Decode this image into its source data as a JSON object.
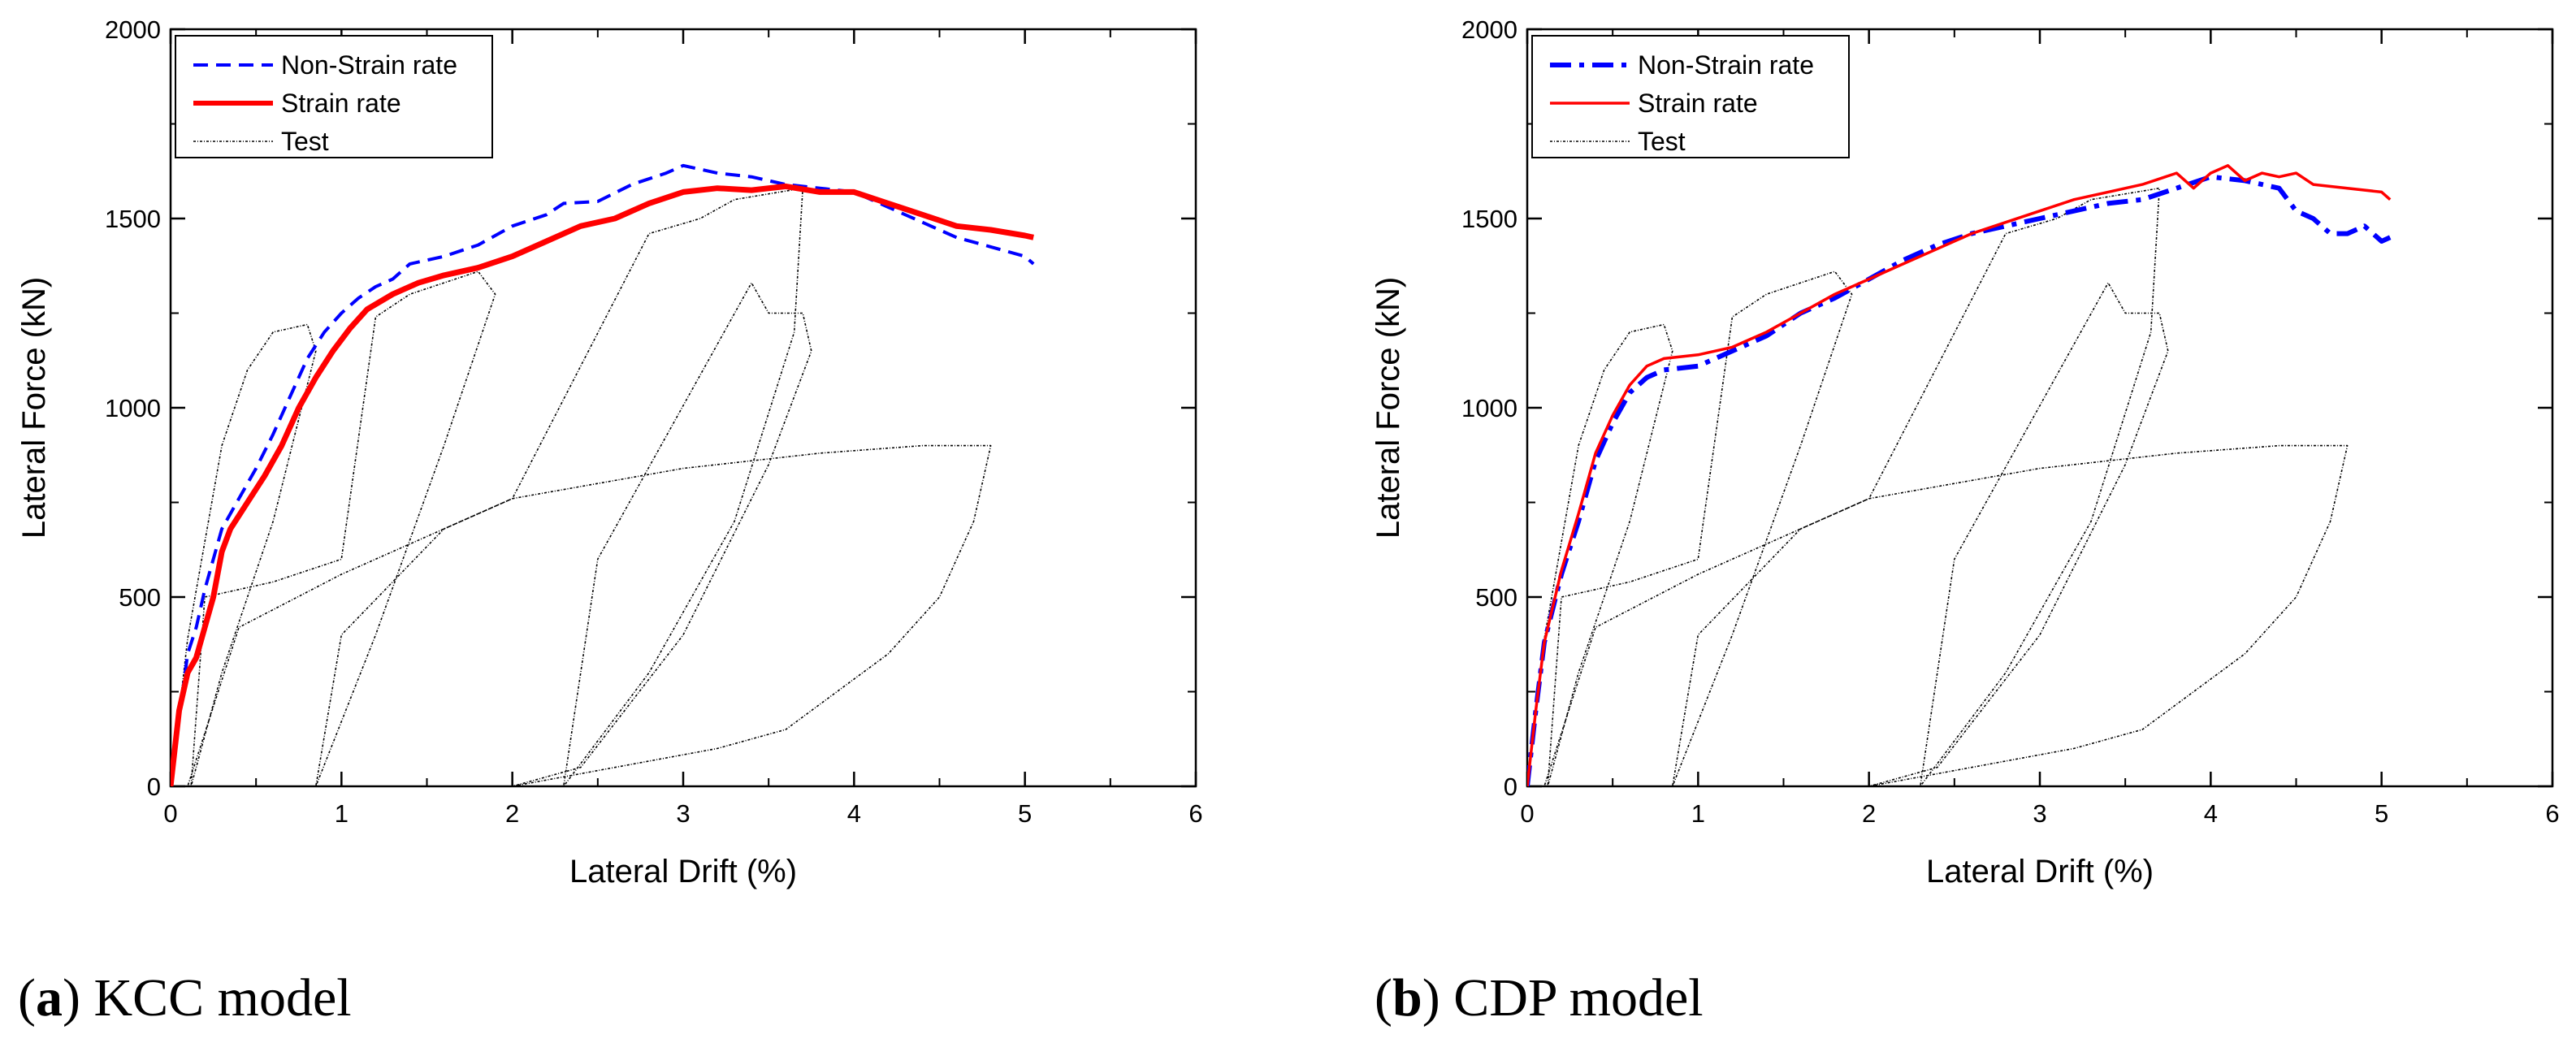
{
  "chart_data": [
    {
      "type": "line",
      "caption_letter": "a",
      "caption_open": "(",
      "caption_close": ")",
      "caption_text": " KCC model",
      "xlabel": "Lateral Drift (%)",
      "ylabel": "Lateral Force (kN)",
      "xlim": [
        0,
        6
      ],
      "ylim": [
        0,
        2000
      ],
      "xticks": [
        0,
        1,
        2,
        3,
        4,
        5,
        6
      ],
      "yticks": [
        0,
        500,
        1000,
        1500,
        2000
      ],
      "legend_position": "top-left",
      "series": [
        {
          "name": "Non-Strain rate",
          "style": "dashed",
          "color": "#0000ff",
          "points": [
            [
              0,
              0
            ],
            [
              0.05,
              180
            ],
            [
              0.1,
              350
            ],
            [
              0.15,
              420
            ],
            [
              0.2,
              520
            ],
            [
              0.25,
              600
            ],
            [
              0.3,
              680
            ],
            [
              0.4,
              760
            ],
            [
              0.5,
              840
            ],
            [
              0.6,
              930
            ],
            [
              0.7,
              1030
            ],
            [
              0.8,
              1130
            ],
            [
              0.9,
              1200
            ],
            [
              1.0,
              1250
            ],
            [
              1.1,
              1290
            ],
            [
              1.2,
              1320
            ],
            [
              1.3,
              1340
            ],
            [
              1.4,
              1380
            ],
            [
              1.5,
              1390
            ],
            [
              1.6,
              1400
            ],
            [
              1.8,
              1430
            ],
            [
              2.0,
              1480
            ],
            [
              2.2,
              1510
            ],
            [
              2.3,
              1540
            ],
            [
              2.5,
              1545
            ],
            [
              2.7,
              1590
            ],
            [
              2.9,
              1620
            ],
            [
              3.0,
              1640
            ],
            [
              3.2,
              1620
            ],
            [
              3.4,
              1610
            ],
            [
              3.6,
              1590
            ],
            [
              3.8,
              1580
            ],
            [
              4.0,
              1570
            ],
            [
              4.2,
              1530
            ],
            [
              4.4,
              1490
            ],
            [
              4.6,
              1450
            ],
            [
              4.8,
              1425
            ],
            [
              5.0,
              1400
            ],
            [
              5.05,
              1380
            ]
          ]
        },
        {
          "name": "Strain rate",
          "style": "solid-thick",
          "color": "#ff0000",
          "points": [
            [
              0,
              0
            ],
            [
              0.05,
              200
            ],
            [
              0.1,
              300
            ],
            [
              0.15,
              340
            ],
            [
              0.2,
              420
            ],
            [
              0.25,
              500
            ],
            [
              0.3,
              620
            ],
            [
              0.35,
              680
            ],
            [
              0.45,
              750
            ],
            [
              0.55,
              820
            ],
            [
              0.65,
              900
            ],
            [
              0.75,
              1000
            ],
            [
              0.85,
              1080
            ],
            [
              0.95,
              1150
            ],
            [
              1.05,
              1210
            ],
            [
              1.15,
              1260
            ],
            [
              1.3,
              1300
            ],
            [
              1.45,
              1330
            ],
            [
              1.6,
              1350
            ],
            [
              1.8,
              1370
            ],
            [
              2.0,
              1400
            ],
            [
              2.2,
              1440
            ],
            [
              2.4,
              1480
            ],
            [
              2.6,
              1500
            ],
            [
              2.8,
              1540
            ],
            [
              3.0,
              1570
            ],
            [
              3.2,
              1580
            ],
            [
              3.4,
              1575
            ],
            [
              3.6,
              1585
            ],
            [
              3.8,
              1570
            ],
            [
              4.0,
              1570
            ],
            [
              4.2,
              1540
            ],
            [
              4.4,
              1510
            ],
            [
              4.6,
              1480
            ],
            [
              4.8,
              1470
            ],
            [
              5.0,
              1455
            ],
            [
              5.05,
              1450
            ]
          ]
        },
        {
          "name": "Test",
          "style": "dotted-thin",
          "color": "#000000",
          "points": [
            [
              0,
              0
            ],
            [
              0.1,
              390
            ],
            [
              0.3,
              900
            ],
            [
              0.45,
              1100
            ],
            [
              0.6,
              1200
            ],
            [
              0.8,
              1220
            ],
            [
              0.85,
              1150
            ],
            [
              0.6,
              700
            ],
            [
              0.3,
              300
            ],
            [
              0.12,
              0
            ],
            [
              0.2,
              500
            ],
            [
              0.6,
              540
            ],
            [
              1.0,
              600
            ],
            [
              1.2,
              1240
            ],
            [
              1.4,
              1300
            ],
            [
              1.8,
              1360
            ],
            [
              1.9,
              1300
            ],
            [
              1.6,
              900
            ],
            [
              1.2,
              400
            ],
            [
              0.85,
              0
            ],
            [
              1.0,
              400
            ],
            [
              1.6,
              680
            ],
            [
              2.0,
              760
            ],
            [
              2.8,
              1460
            ],
            [
              3.1,
              1500
            ],
            [
              3.3,
              1550
            ],
            [
              3.7,
              1580
            ],
            [
              3.65,
              1200
            ],
            [
              3.3,
              700
            ],
            [
              2.8,
              300
            ],
            [
              2.3,
              0
            ],
            [
              2.5,
              600
            ],
            [
              3.4,
              1330
            ],
            [
              3.5,
              1250
            ],
            [
              3.7,
              1250
            ],
            [
              3.75,
              1150
            ],
            [
              3.5,
              850
            ],
            [
              3.0,
              400
            ],
            [
              2.4,
              50
            ],
            [
              2.0,
              0
            ],
            [
              2.6,
              50
            ],
            [
              3.2,
              100
            ],
            [
              3.6,
              150
            ],
            [
              3.9,
              250
            ],
            [
              4.2,
              350
            ],
            [
              4.5,
              500
            ],
            [
              4.7,
              700
            ],
            [
              4.8,
              900
            ],
            [
              4.4,
              900
            ],
            [
              3.8,
              880
            ],
            [
              3.0,
              840
            ],
            [
              2.0,
              760
            ],
            [
              1.0,
              560
            ],
            [
              0.4,
              420
            ],
            [
              0.1,
              0
            ]
          ]
        }
      ]
    },
    {
      "type": "line",
      "caption_letter": "b",
      "caption_open": "(",
      "caption_close": ")",
      "caption_text": " CDP model",
      "xlabel": "Lateral Drift (%)",
      "ylabel": "Lateral Force (kN)",
      "xlim": [
        0,
        6
      ],
      "ylim": [
        0,
        2000
      ],
      "xticks": [
        0,
        1,
        2,
        3,
        4,
        5,
        6
      ],
      "yticks": [
        0,
        500,
        1000,
        1500,
        2000
      ],
      "legend_position": "top-left",
      "series": [
        {
          "name": "Non-Strain rate",
          "style": "dashdot-thick",
          "color": "#0000ff",
          "points": [
            [
              0,
              0
            ],
            [
              0.05,
              200
            ],
            [
              0.1,
              380
            ],
            [
              0.2,
              560
            ],
            [
              0.3,
              700
            ],
            [
              0.4,
              860
            ],
            [
              0.5,
              960
            ],
            [
              0.6,
              1040
            ],
            [
              0.7,
              1080
            ],
            [
              0.8,
              1100
            ],
            [
              1.0,
              1110
            ],
            [
              1.2,
              1150
            ],
            [
              1.4,
              1190
            ],
            [
              1.6,
              1250
            ],
            [
              1.8,
              1290
            ],
            [
              2.0,
              1340
            ],
            [
              2.2,
              1390
            ],
            [
              2.4,
              1430
            ],
            [
              2.6,
              1460
            ],
            [
              2.8,
              1480
            ],
            [
              3.0,
              1500
            ],
            [
              3.2,
              1520
            ],
            [
              3.4,
              1540
            ],
            [
              3.6,
              1550
            ],
            [
              3.8,
              1580
            ],
            [
              4.0,
              1610
            ],
            [
              4.2,
              1600
            ],
            [
              4.4,
              1580
            ],
            [
              4.5,
              1520
            ],
            [
              4.6,
              1500
            ],
            [
              4.7,
              1460
            ],
            [
              4.8,
              1460
            ],
            [
              4.9,
              1480
            ],
            [
              5.0,
              1440
            ],
            [
              5.05,
              1450
            ]
          ]
        },
        {
          "name": "Strain rate",
          "style": "solid",
          "color": "#ff0000",
          "points": [
            [
              0,
              0
            ],
            [
              0.05,
              200
            ],
            [
              0.1,
              380
            ],
            [
              0.2,
              570
            ],
            [
              0.3,
              720
            ],
            [
              0.4,
              880
            ],
            [
              0.5,
              980
            ],
            [
              0.6,
              1060
            ],
            [
              0.7,
              1110
            ],
            [
              0.8,
              1130
            ],
            [
              1.0,
              1140
            ],
            [
              1.2,
              1160
            ],
            [
              1.4,
              1200
            ],
            [
              1.6,
              1250
            ],
            [
              1.8,
              1300
            ],
            [
              2.0,
              1340
            ],
            [
              2.2,
              1380
            ],
            [
              2.4,
              1420
            ],
            [
              2.6,
              1460
            ],
            [
              2.8,
              1490
            ],
            [
              3.0,
              1520
            ],
            [
              3.2,
              1550
            ],
            [
              3.4,
              1570
            ],
            [
              3.6,
              1590
            ],
            [
              3.8,
              1620
            ],
            [
              3.9,
              1580
            ],
            [
              4.0,
              1620
            ],
            [
              4.1,
              1640
            ],
            [
              4.2,
              1600
            ],
            [
              4.3,
              1620
            ],
            [
              4.4,
              1610
            ],
            [
              4.5,
              1620
            ],
            [
              4.6,
              1590
            ],
            [
              4.8,
              1580
            ],
            [
              5.0,
              1570
            ],
            [
              5.05,
              1550
            ]
          ]
        },
        {
          "name": "Test",
          "style": "dotted-thin",
          "color": "#000000",
          "points": [
            [
              0,
              0
            ],
            [
              0.1,
              390
            ],
            [
              0.3,
              900
            ],
            [
              0.45,
              1100
            ],
            [
              0.6,
              1200
            ],
            [
              0.8,
              1220
            ],
            [
              0.85,
              1150
            ],
            [
              0.6,
              700
            ],
            [
              0.3,
              300
            ],
            [
              0.12,
              0
            ],
            [
              0.2,
              500
            ],
            [
              0.6,
              540
            ],
            [
              1.0,
              600
            ],
            [
              1.2,
              1240
            ],
            [
              1.4,
              1300
            ],
            [
              1.8,
              1360
            ],
            [
              1.9,
              1300
            ],
            [
              1.6,
              900
            ],
            [
              1.2,
              400
            ],
            [
              0.85,
              0
            ],
            [
              1.0,
              400
            ],
            [
              1.6,
              680
            ],
            [
              2.0,
              760
            ],
            [
              2.8,
              1460
            ],
            [
              3.1,
              1500
            ],
            [
              3.3,
              1550
            ],
            [
              3.7,
              1580
            ],
            [
              3.65,
              1200
            ],
            [
              3.3,
              700
            ],
            [
              2.8,
              300
            ],
            [
              2.3,
              0
            ],
            [
              2.5,
              600
            ],
            [
              3.4,
              1330
            ],
            [
              3.5,
              1250
            ],
            [
              3.7,
              1250
            ],
            [
              3.75,
              1150
            ],
            [
              3.5,
              850
            ],
            [
              3.0,
              400
            ],
            [
              2.4,
              50
            ],
            [
              2.0,
              0
            ],
            [
              2.6,
              50
            ],
            [
              3.2,
              100
            ],
            [
              3.6,
              150
            ],
            [
              3.9,
              250
            ],
            [
              4.2,
              350
            ],
            [
              4.5,
              500
            ],
            [
              4.7,
              700
            ],
            [
              4.8,
              900
            ],
            [
              4.4,
              900
            ],
            [
              3.8,
              880
            ],
            [
              3.0,
              840
            ],
            [
              2.0,
              760
            ],
            [
              1.0,
              560
            ],
            [
              0.4,
              420
            ],
            [
              0.1,
              0
            ]
          ]
        }
      ]
    }
  ]
}
